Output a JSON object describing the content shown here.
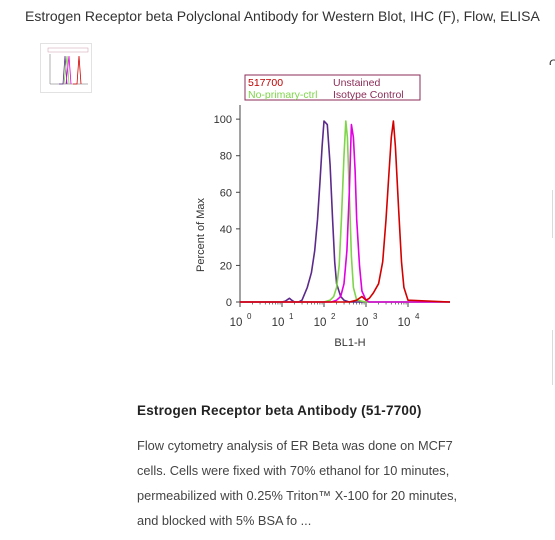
{
  "page": {
    "title": "Estrogen Receptor beta Polyclonal Antibody for Western Blot, IHC (F), Flow, ELISA",
    "side_glyph": "C"
  },
  "figure": {
    "legend": {
      "sample": "517700",
      "unstained": "Unstained",
      "no_primary": "No-primary-ctrl",
      "isotype": "Isotype Control"
    },
    "colors": {
      "sample": "#d40000",
      "unstained": "#5b2a8a",
      "no_primary": "#7fd44a",
      "isotype": "#e000e0",
      "legend_text": "#8b2d57",
      "legend_green": "#7fd44a"
    },
    "chart_data": {
      "type": "line",
      "xlabel": "BL1-H",
      "ylabel": "Percent of Max",
      "x_scale": "log",
      "xlim": [
        1,
        100000
      ],
      "ylim": [
        0,
        105
      ],
      "y_ticks": [
        "0",
        "20",
        "40",
        "60",
        "80",
        "100"
      ],
      "x_ticks": [
        {
          "base": "10",
          "exp": "0",
          "value": 1
        },
        {
          "base": "10",
          "exp": "1",
          "value": 10
        },
        {
          "base": "10",
          "exp": "2",
          "value": 100
        },
        {
          "base": "10",
          "exp": "3",
          "value": 1000
        },
        {
          "base": "10",
          "exp": "4",
          "value": 10000
        }
      ],
      "series": [
        {
          "name": "Unstained",
          "color_key": "unstained",
          "x": [
            1,
            5,
            10,
            12,
            15,
            17,
            20,
            25,
            30,
            40,
            50,
            60,
            70,
            80,
            90,
            100,
            120,
            140,
            160,
            180,
            200,
            250,
            300,
            400,
            500,
            700,
            1000,
            100000
          ],
          "y": [
            0,
            0,
            0,
            0.5,
            2,
            1,
            0,
            0,
            1,
            8,
            16,
            28,
            45,
            65,
            85,
            99,
            97,
            75,
            45,
            22,
            10,
            3,
            1,
            0,
            0,
            0,
            0,
            0
          ]
        },
        {
          "name": "No-primary-ctrl",
          "color_key": "no_primary",
          "x": [
            1,
            100,
            140,
            170,
            200,
            230,
            260,
            300,
            330,
            360,
            400,
            450,
            500,
            600,
            1000,
            100000
          ],
          "y": [
            0,
            0,
            1,
            3,
            8,
            20,
            45,
            80,
            99,
            90,
            60,
            25,
            8,
            1,
            0,
            0
          ],
          "y2": []
        },
        {
          "name": "Isotype Control",
          "color_key": "isotype",
          "x": [
            1,
            150,
            200,
            250,
            300,
            350,
            400,
            450,
            500,
            550,
            600,
            700,
            800,
            1000,
            1200,
            100000
          ],
          "y": [
            0,
            0,
            1,
            3,
            10,
            28,
            60,
            97,
            90,
            72,
            45,
            20,
            6,
            1,
            0,
            0
          ]
        },
        {
          "name": "517700",
          "color_key": "sample",
          "x": [
            1,
            400,
            600,
            800,
            1000,
            1200,
            1500,
            2000,
            2500,
            3000,
            3500,
            4000,
            4500,
            5000,
            6000,
            7000,
            8000,
            10000,
            100000
          ],
          "y": [
            0,
            0,
            1,
            3,
            1,
            2,
            5,
            10,
            22,
            45,
            70,
            90,
            99,
            85,
            50,
            22,
            8,
            1,
            0
          ]
        }
      ]
    }
  },
  "caption": {
    "title": "Estrogen Receptor beta Antibody (51-7700)",
    "lines": [
      "Flow cytometry analysis of ER Beta was done on MCF7",
      "cells. Cells were fixed with 70% ethanol for 10 minutes,",
      "permeabilized with 0.25% Triton™ X-100 for 20 minutes,",
      "and blocked with 5% BSA fo ..."
    ]
  }
}
